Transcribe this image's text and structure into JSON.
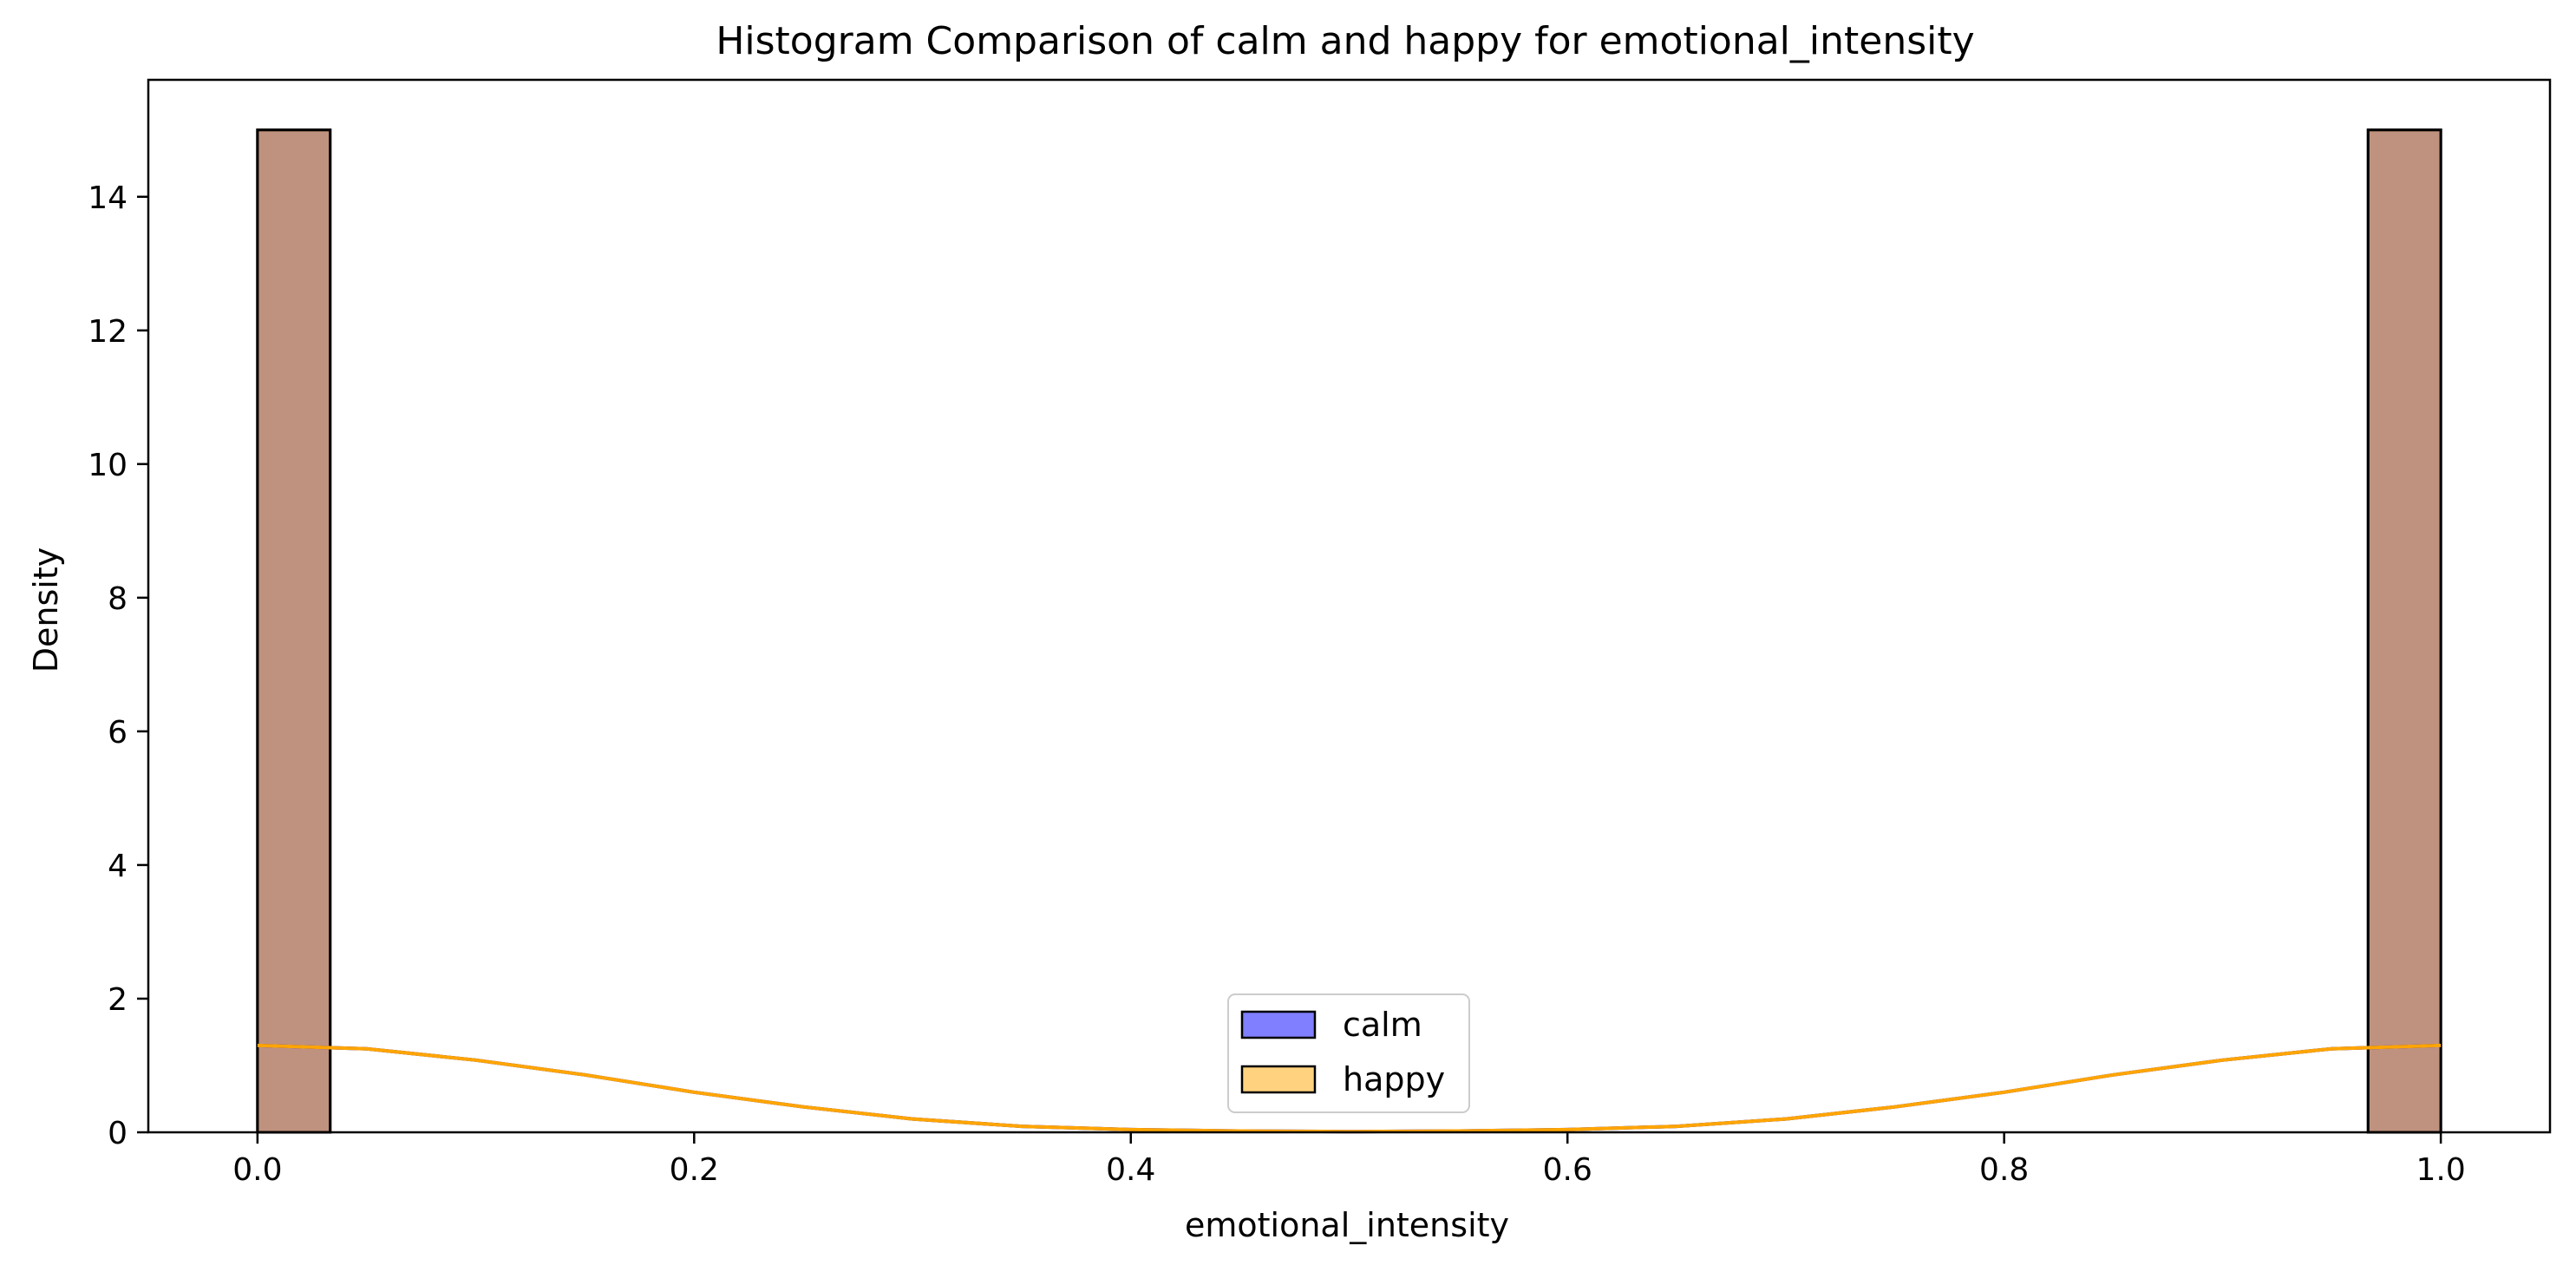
{
  "chart_data": {
    "type": "bar",
    "title": "Histogram Comparison of calm and happy for emotional_intensity",
    "xlabel": "emotional_intensity",
    "ylabel": "Density",
    "xlim": [
      -0.05,
      1.05
    ],
    "ylim": [
      0,
      15.75
    ],
    "xticks": [
      0.0,
      0.2,
      0.4,
      0.6,
      0.8,
      1.0
    ],
    "xtick_labels": [
      "0.0",
      "0.2",
      "0.4",
      "0.6",
      "0.8",
      "1.0"
    ],
    "yticks": [
      0,
      2,
      4,
      6,
      8,
      10,
      12,
      14
    ],
    "ytick_labels": [
      "0",
      "2",
      "4",
      "6",
      "8",
      "10",
      "12",
      "14"
    ],
    "bin_width": 0.0333,
    "grid": false,
    "legend_position": "bottom-center",
    "series": [
      {
        "name": "calm",
        "color": "#0000ff",
        "alpha": 0.5,
        "kde": true,
        "bins": [
          {
            "x0": 0.0,
            "x1": 0.0333,
            "density": 15.0
          },
          {
            "x0": 0.9667,
            "x1": 1.0,
            "density": 15.0
          }
        ],
        "kde_points": [
          [
            0.0,
            1.3
          ],
          [
            0.05,
            1.25
          ],
          [
            0.1,
            1.08
          ],
          [
            0.15,
            0.86
          ],
          [
            0.2,
            0.6
          ],
          [
            0.25,
            0.38
          ],
          [
            0.3,
            0.2
          ],
          [
            0.35,
            0.09
          ],
          [
            0.4,
            0.04
          ],
          [
            0.45,
            0.02
          ],
          [
            0.5,
            0.01
          ],
          [
            0.55,
            0.02
          ],
          [
            0.6,
            0.04
          ],
          [
            0.65,
            0.09
          ],
          [
            0.7,
            0.2
          ],
          [
            0.75,
            0.38
          ],
          [
            0.8,
            0.6
          ],
          [
            0.85,
            0.86
          ],
          [
            0.9,
            1.08
          ],
          [
            0.95,
            1.25
          ],
          [
            1.0,
            1.3
          ]
        ]
      },
      {
        "name": "happy",
        "color": "#ffa500",
        "alpha": 0.5,
        "kde": true,
        "bins": [
          {
            "x0": 0.0,
            "x1": 0.0333,
            "density": 15.0
          },
          {
            "x0": 0.9667,
            "x1": 1.0,
            "density": 15.0
          }
        ],
        "kde_points": [
          [
            0.0,
            1.3
          ],
          [
            0.05,
            1.25
          ],
          [
            0.1,
            1.08
          ],
          [
            0.15,
            0.86
          ],
          [
            0.2,
            0.6
          ],
          [
            0.25,
            0.38
          ],
          [
            0.3,
            0.2
          ],
          [
            0.35,
            0.09
          ],
          [
            0.4,
            0.04
          ],
          [
            0.45,
            0.02
          ],
          [
            0.5,
            0.01
          ],
          [
            0.55,
            0.02
          ],
          [
            0.6,
            0.04
          ],
          [
            0.65,
            0.09
          ],
          [
            0.7,
            0.2
          ],
          [
            0.75,
            0.38
          ],
          [
            0.8,
            0.6
          ],
          [
            0.85,
            0.86
          ],
          [
            0.9,
            1.08
          ],
          [
            0.95,
            1.25
          ],
          [
            1.0,
            1.3
          ]
        ]
      }
    ]
  }
}
